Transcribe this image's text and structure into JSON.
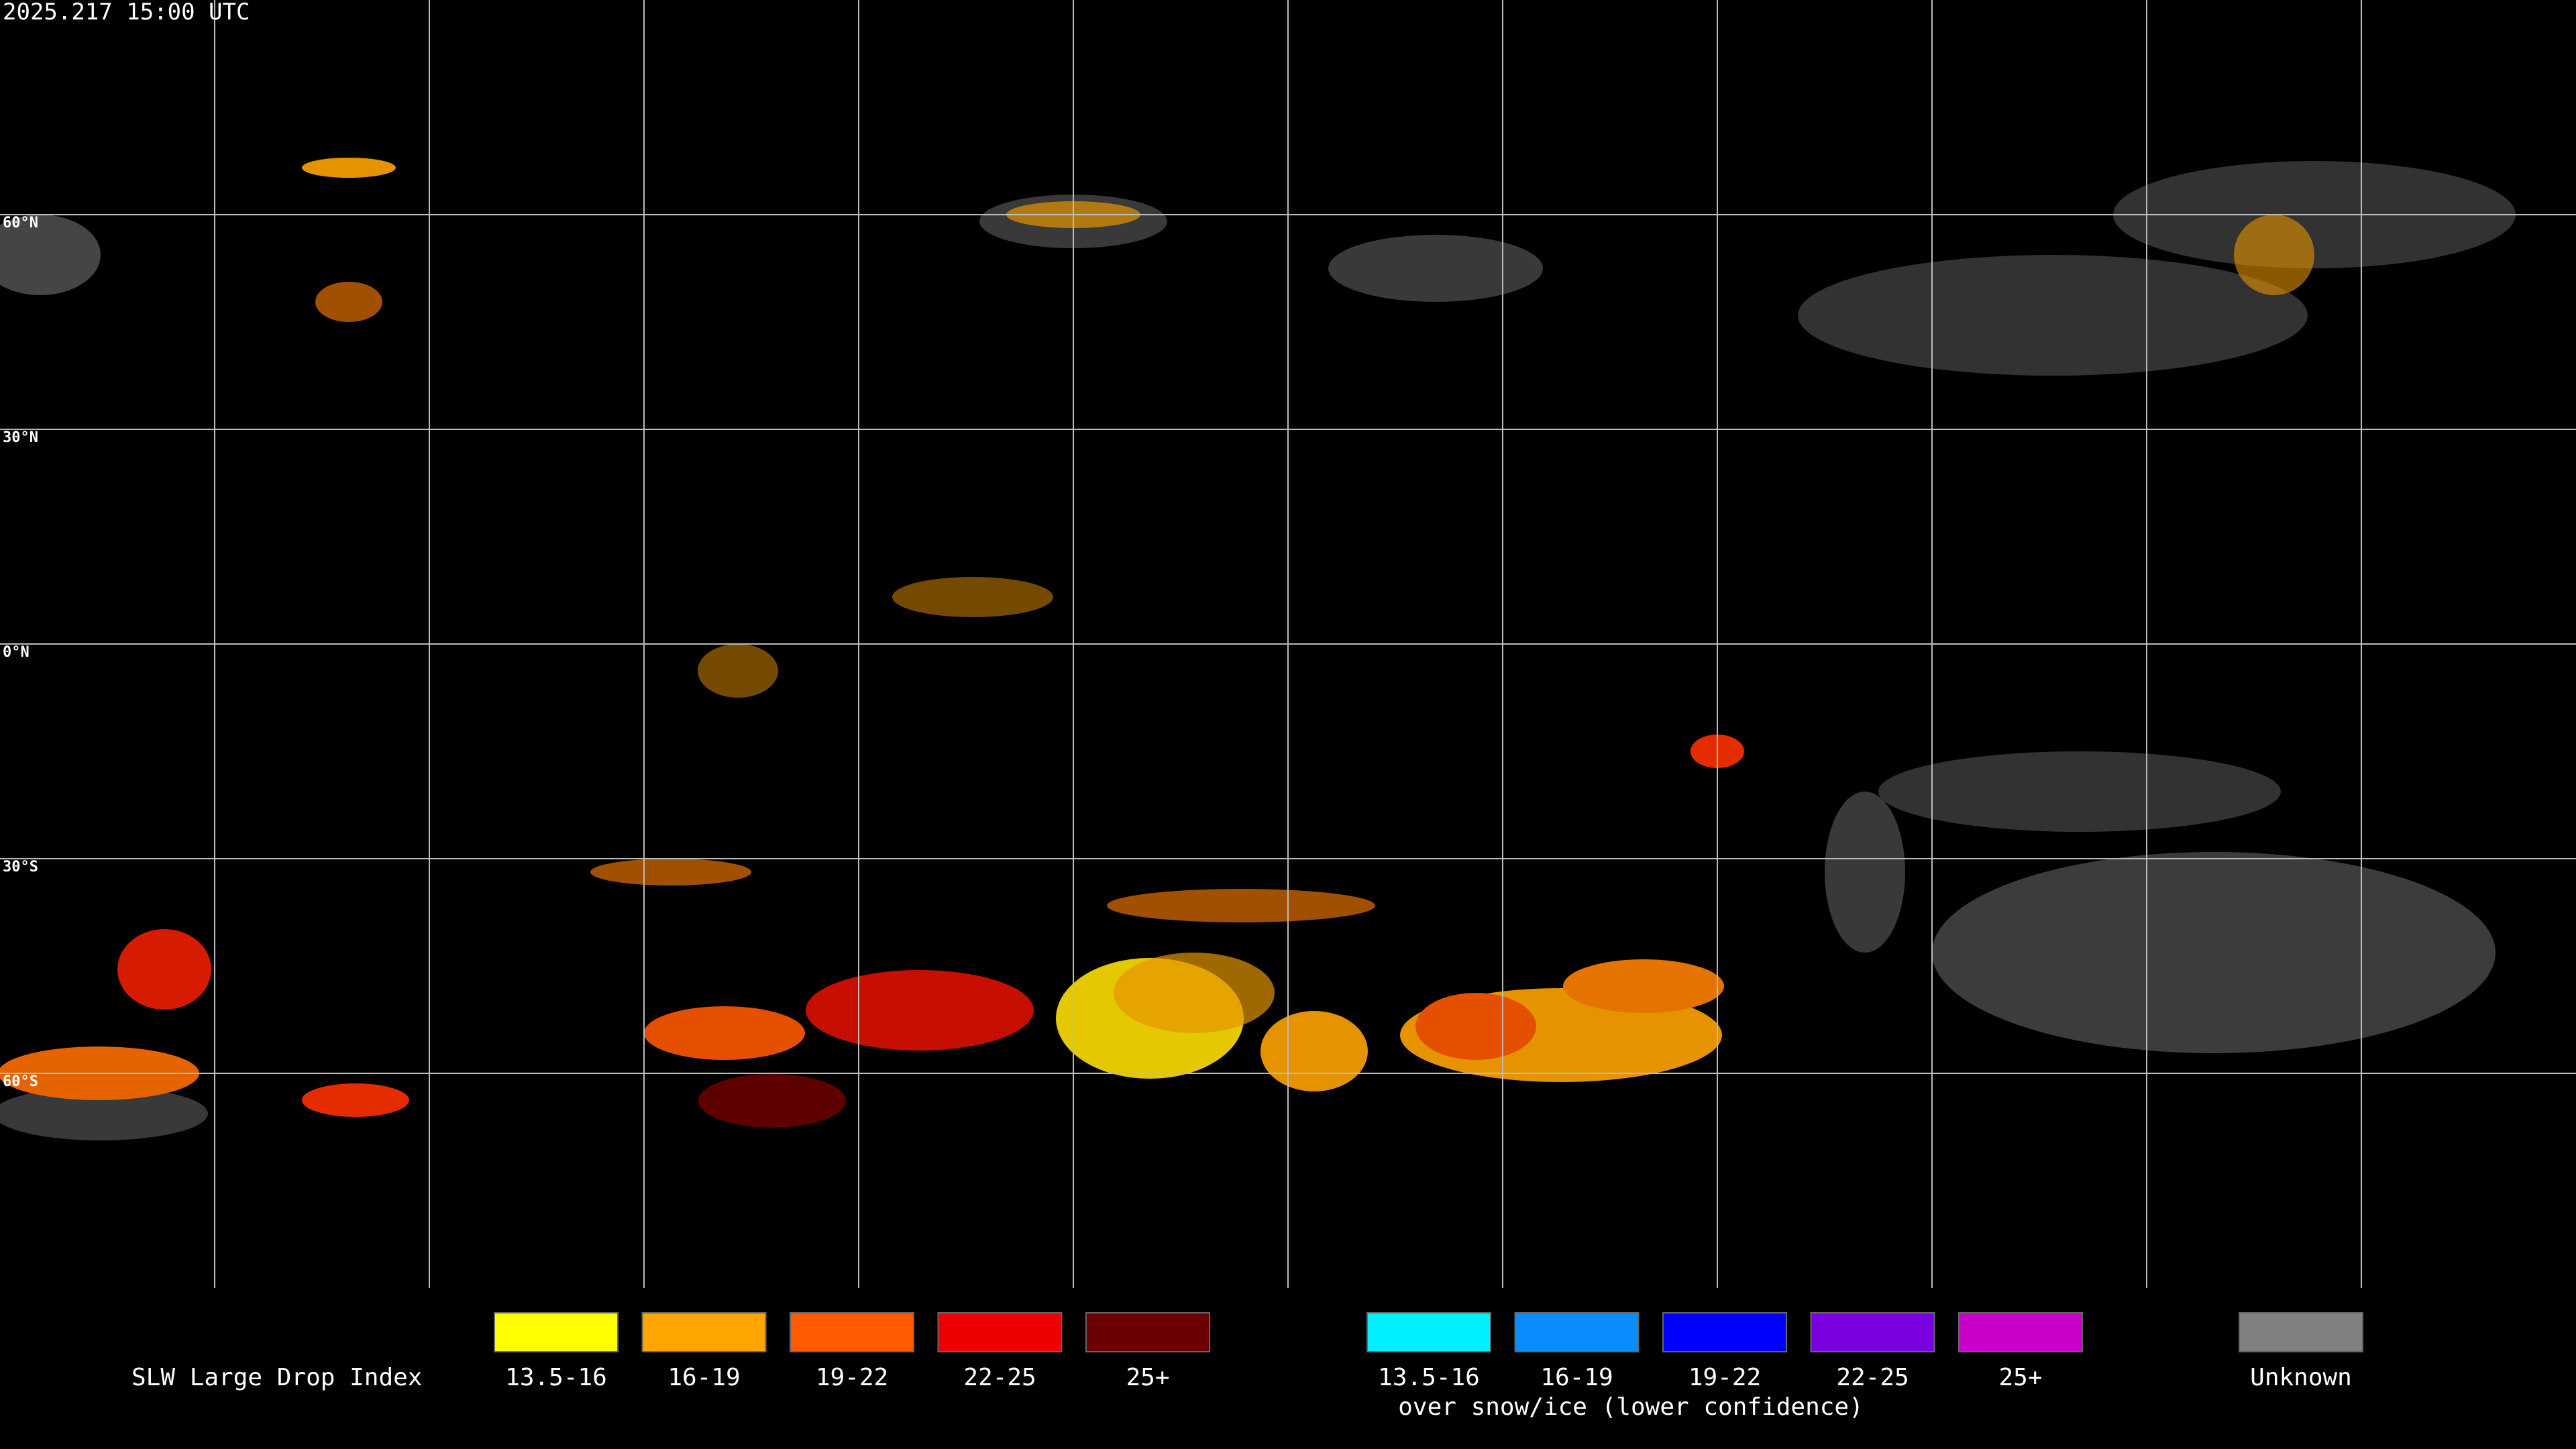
{
  "timestamp": "2025.217 15:00 UTC",
  "lat_labels": [
    "60°N",
    "30°N",
    "0°N",
    "30°S",
    "60°S"
  ],
  "legend": {
    "title": "SLW Large Drop Index",
    "items": [
      {
        "label": "13.5-16",
        "color": "#ffff00"
      },
      {
        "label": "16-19",
        "color": "#ffa500"
      },
      {
        "label": "19-22",
        "color": "#ff5a00"
      },
      {
        "label": "22-25",
        "color": "#ee0000"
      },
      {
        "label": "25+",
        "color": "#6a0000"
      }
    ],
    "snow_items": [
      {
        "label": "13.5-16",
        "color": "#00f0ff"
      },
      {
        "label": "16-19",
        "color": "#0a8cff"
      },
      {
        "label": "19-22",
        "color": "#0000ff"
      },
      {
        "label": "22-25",
        "color": "#7a00e0"
      },
      {
        "label": "25+",
        "color": "#c800c8"
      }
    ],
    "snow_note": "over snow/ice (lower confidence)",
    "unknown": {
      "label": "Unknown",
      "color": "#808080"
    }
  }
}
